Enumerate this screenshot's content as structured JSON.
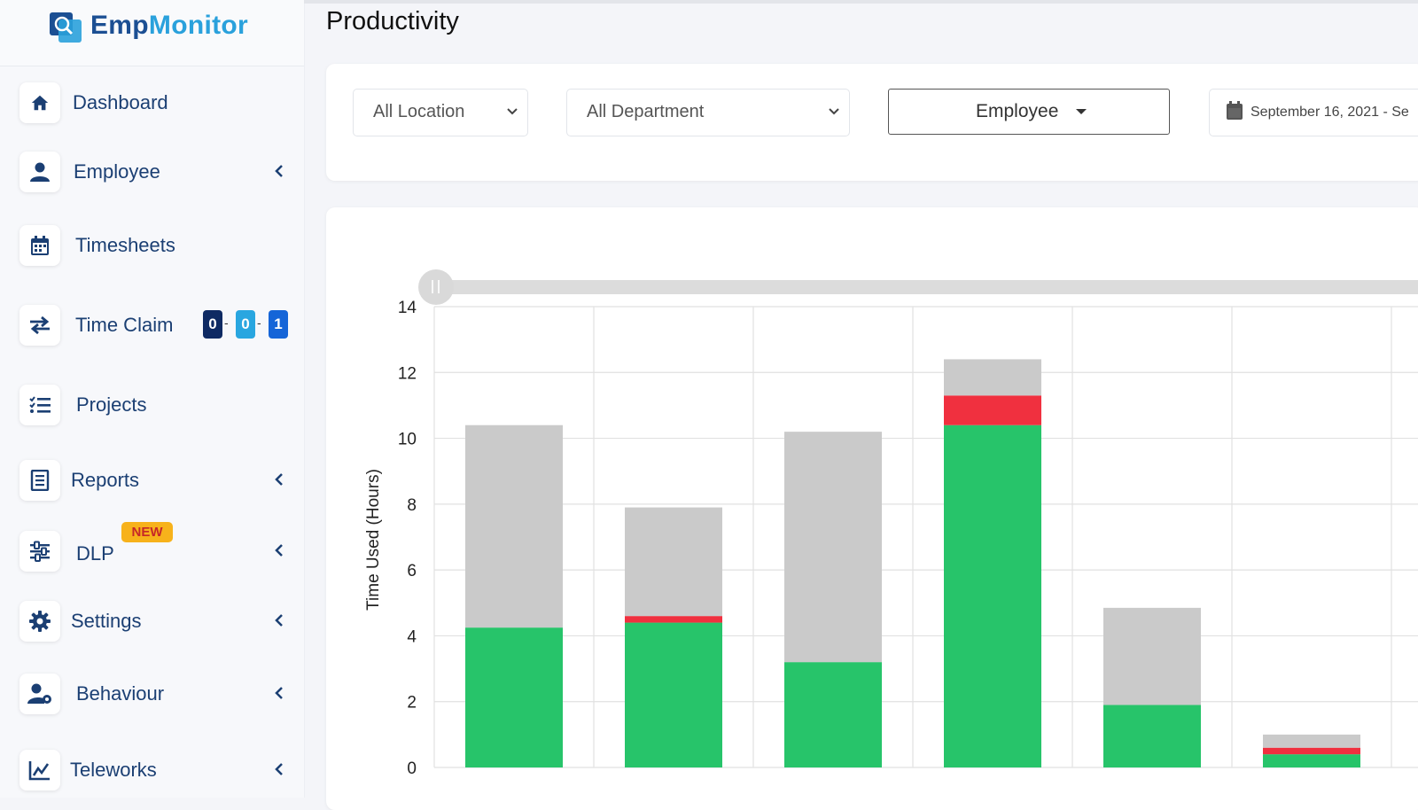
{
  "logo": {
    "word_a": "Emp",
    "word_b": "Monitor"
  },
  "page": {
    "title": "Productivity"
  },
  "sidebar": {
    "items": [
      {
        "label": "Dashboard",
        "icon": "home-icon",
        "has_chevron": false
      },
      {
        "label": "Employee",
        "icon": "user-icon",
        "has_chevron": true
      },
      {
        "label": "Timesheets",
        "icon": "calendar-icon",
        "has_chevron": false
      },
      {
        "label": "Time Claim",
        "icon": "exchange-icon",
        "has_chevron": false
      },
      {
        "label": "Projects",
        "icon": "list-icon",
        "has_chevron": false
      },
      {
        "label": "Reports",
        "icon": "report-icon",
        "has_chevron": true
      },
      {
        "label": "DLP",
        "icon": "sliders-icon",
        "has_chevron": true,
        "badge": "NEW"
      },
      {
        "label": "Settings",
        "icon": "gear-icon",
        "has_chevron": true
      },
      {
        "label": "Behaviour",
        "icon": "user-gear-icon",
        "has_chevron": true
      },
      {
        "label": "Teleworks",
        "icon": "line-chart-icon",
        "has_chevron": true
      }
    ],
    "time_claim_badges": [
      {
        "value": "0",
        "color": "#0e2a63"
      },
      {
        "value": "0",
        "color": "#29a6e0"
      },
      {
        "value": "1",
        "color": "#1565d8"
      }
    ]
  },
  "filters": {
    "location": "All Location",
    "department": "All Department",
    "view": "Employee",
    "date_range": "September 16, 2021 - Se"
  },
  "colors": {
    "productive": "#27c46a",
    "unproductive": "#f0303f",
    "neutral": "#cacaca",
    "brand_dark": "#1c4f93",
    "brand_light": "#2aa1dc"
  },
  "chart_data": {
    "type": "bar",
    "stacked": true,
    "ylabel": "Time Used (Hours)",
    "ylim": [
      0,
      14
    ],
    "yticks": [
      0,
      2,
      4,
      6,
      8,
      10,
      12,
      14
    ],
    "grid": true,
    "categories": [
      "",
      "",
      "",
      "",
      "",
      ""
    ],
    "series": [
      {
        "values": [
          4.25,
          4.4,
          3.2,
          10.4,
          1.9,
          0.4
        ],
        "color": "#27c46a"
      },
      {
        "values": [
          0,
          0.2,
          0,
          0.9,
          0,
          0.2
        ],
        "color": "#f0303f"
      },
      {
        "values": [
          6.15,
          3.3,
          7.0,
          1.1,
          2.95,
          0.4
        ],
        "color": "#cacaca"
      }
    ]
  }
}
